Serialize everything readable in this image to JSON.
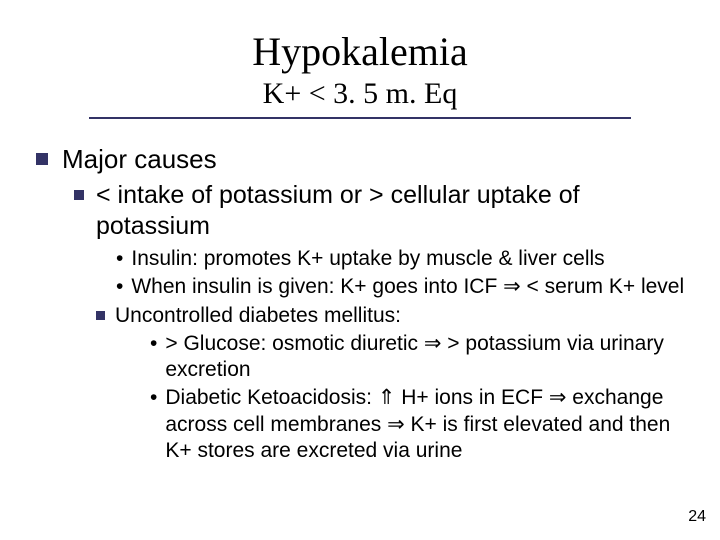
{
  "title": "Hypokalemia",
  "subtitle": "K+ < 3. 5 m. Eq",
  "accent_color": "#333366",
  "background_color": "#ffffff",
  "text_color": "#000000",
  "fonts": {
    "title_family": "Times New Roman",
    "body_family": "Arial",
    "title_size_pt": 40,
    "subtitle_size_pt": 30,
    "lvl1_size_pt": 26,
    "lvl2_size_pt": 25,
    "lvl3_size_pt": 21
  },
  "bullets": {
    "l1_0": "Major causes",
    "l2_0": "< intake of potassium or > cellular uptake of potassium",
    "l3_0": "Insulin: promotes K+ uptake by muscle & liver cells",
    "l3_1": "When insulin is given: K+ goes into ICF ⇒ < serum K+ level",
    "l2_1": "Uncontrolled diabetes mellitus:",
    "l4_0": "> Glucose: osmotic diuretic ⇒ > potassium via urinary excretion",
    "l4_1": "Diabetic Ketoacidosis: ⇑ H+ ions in ECF ⇒ exchange across cell membranes ⇒ K+ is first elevated and then K+ stores are excreted via urine"
  },
  "page_number": "24"
}
